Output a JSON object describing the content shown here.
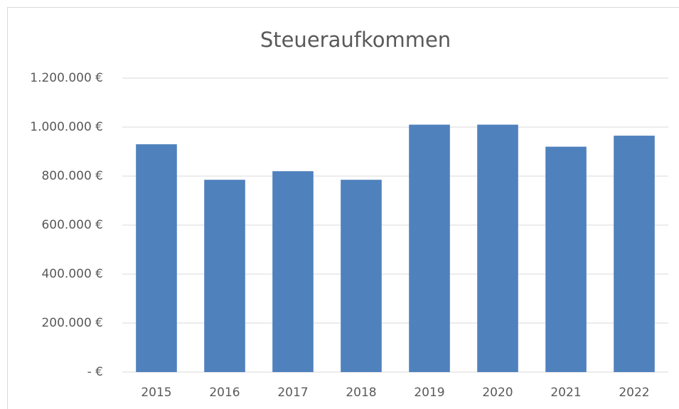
{
  "chart_data": {
    "type": "bar",
    "title": "Steueraufkommen",
    "categories": [
      "2015",
      "2016",
      "2017",
      "2018",
      "2019",
      "2020",
      "2021",
      "2022"
    ],
    "values": [
      930000,
      785000,
      820000,
      785000,
      1010000,
      1010000,
      920000,
      965000
    ],
    "color": "#4f81bd",
    "ylim": [
      0,
      1200000
    ],
    "yticks": [
      {
        "value": 0,
        "label": "- €"
      },
      {
        "value": 200000,
        "label": "200.000 €"
      },
      {
        "value": 400000,
        "label": "400.000 €"
      },
      {
        "value": 600000,
        "label": "600.000 €"
      },
      {
        "value": 800000,
        "label": "800.000 €"
      },
      {
        "value": 1000000,
        "label": "1.000.000 €"
      },
      {
        "value": 1200000,
        "label": "1.200.000 €"
      }
    ],
    "grid": true
  }
}
